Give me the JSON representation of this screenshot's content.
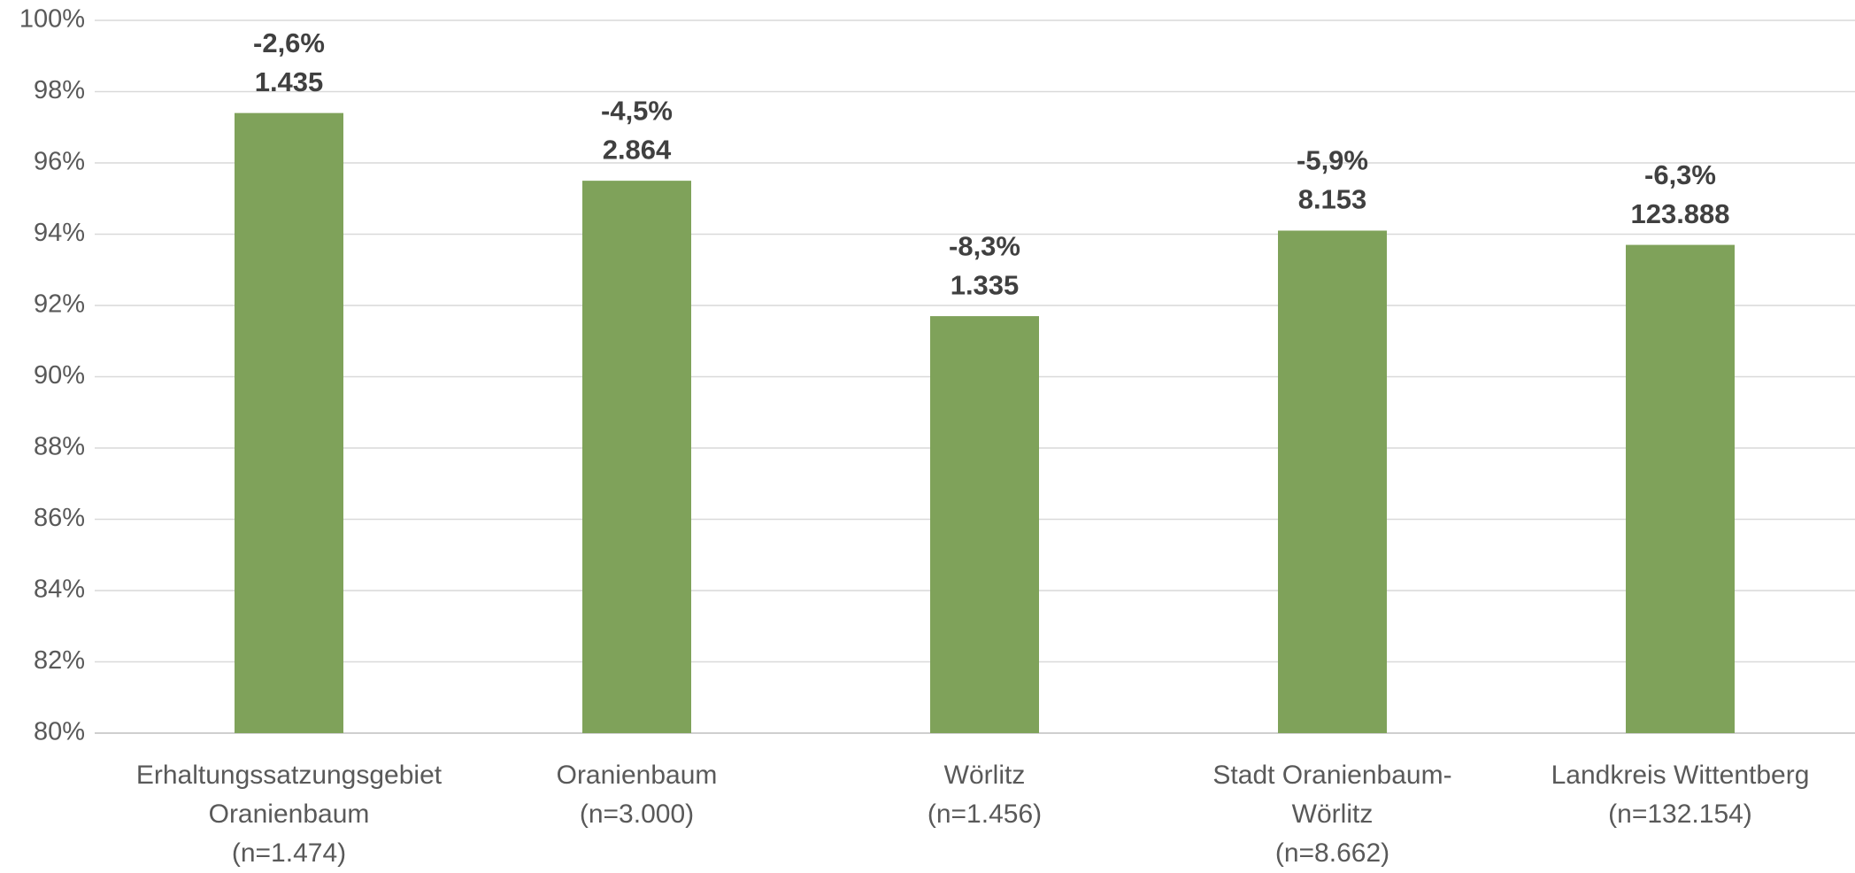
{
  "chart_data": {
    "type": "bar",
    "categories": [
      [
        "Erhaltungssatzungsgebiet",
        "Oranienbaum",
        "(n=1.474)"
      ],
      [
        "Oranienbaum",
        "(n=3.000)"
      ],
      [
        "Wörlitz",
        "(n=1.456)"
      ],
      [
        "Stadt Oranienbaum-",
        "Wörlitz",
        "(n=8.662)"
      ],
      [
        "Landkreis Wittentberg",
        "(n=132.154)"
      ]
    ],
    "values": [
      97.4,
      95.5,
      91.7,
      94.1,
      93.7
    ],
    "change_labels": [
      "-2,6%",
      "-4,5%",
      "-8,3%",
      "-5,9%",
      "-6,3%"
    ],
    "count_labels": [
      "1.435",
      "2.864",
      "1.335",
      "8.153",
      "123.888"
    ],
    "color": "#7fa25a",
    "ylim": [
      80,
      100
    ],
    "yticks": [
      {
        "value": 80,
        "label": "80%"
      },
      {
        "value": 82,
        "label": "82%"
      },
      {
        "value": 84,
        "label": "84%"
      },
      {
        "value": 86,
        "label": "86%"
      },
      {
        "value": 88,
        "label": "88%"
      },
      {
        "value": 90,
        "label": "90%"
      },
      {
        "value": 92,
        "label": "92%"
      },
      {
        "value": 94,
        "label": "94%"
      },
      {
        "value": 96,
        "label": "96%"
      },
      {
        "value": 98,
        "label": "98%"
      },
      {
        "value": 100,
        "label": "100%"
      }
    ],
    "grid": true
  }
}
